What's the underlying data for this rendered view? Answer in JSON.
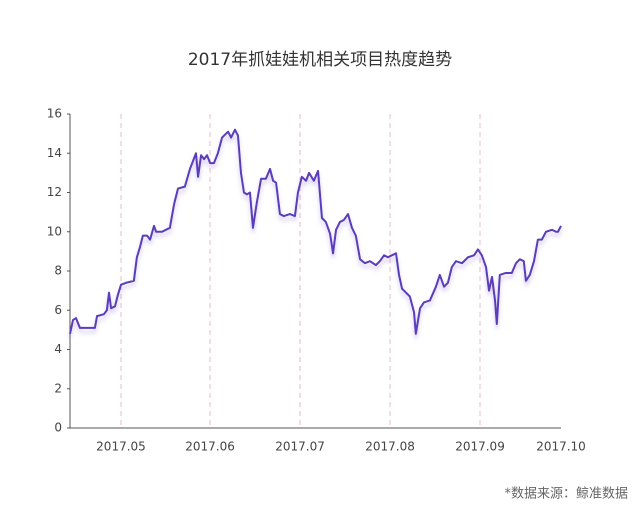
{
  "chart_data": {
    "type": "line",
    "title": "2017年抓娃娃机相关项目热度趋势",
    "source": "*数据来源：鲸准数据",
    "x": [
      0,
      1,
      2,
      3.3,
      6.7,
      8.3,
      9,
      11.3,
      12.3,
      13,
      13.7,
      15,
      16,
      17,
      18.7,
      21.3,
      22.3,
      23.3,
      24.3,
      25.7,
      26.7,
      28,
      28.7,
      30.7,
      33.3,
      34.7,
      36,
      38.3,
      40,
      42,
      42.7,
      43.7,
      44.7,
      45.7,
      46.7,
      48,
      49.3,
      50.7,
      52.7,
      53.7,
      55,
      56,
      57,
      58,
      59,
      60,
      61,
      62.3,
      63.7,
      65.3,
      66.7,
      67.7,
      68.7,
      70,
      71.3,
      73.3,
      75,
      76,
      77.3,
      78.7,
      79.7,
      81.3,
      82.7,
      84,
      85.3,
      86.7,
      87.7,
      88.7,
      90,
      91.3,
      92.7,
      94,
      95.3,
      96.7,
      98.3,
      100,
      102,
      103.3,
      104.7,
      106,
      107.3,
      108.7,
      109.7,
      110.7,
      112,
      113.3,
      114.7,
      115.3,
      116.7,
      118,
      120,
      122,
      123.3,
      124.7,
      126,
      127.3,
      128.7,
      130.7,
      132.7,
      134.7,
      136,
      137.3,
      138.7,
      139.7,
      140.7,
      141.7,
      142.3,
      143.3,
      145.3,
      147.3,
      148.7,
      150,
      151.3,
      152,
      153.3,
      154.7,
      156,
      157.3,
      158.7,
      160.7,
      162,
      162.7,
      163.7
    ],
    "series": [
      {
        "color": "#5a3db8",
        "values": [
          4.8,
          5.5,
          5.6,
          5.1,
          5.1,
          5.1,
          5.7,
          5.8,
          6.0,
          6.9,
          6.1,
          6.2,
          6.8,
          7.3,
          7.4,
          7.5,
          8.7,
          9.2,
          9.8,
          9.8,
          9.6,
          10.3,
          10.0,
          10.0,
          10.2,
          11.4,
          12.2,
          12.3,
          13.2,
          14.0,
          12.8,
          13.9,
          13.7,
          13.9,
          13.5,
          13.5,
          14.0,
          14.8,
          15.1,
          14.8,
          15.2,
          14.9,
          13.0,
          12.0,
          11.9,
          12.0,
          10.2,
          11.5,
          12.7,
          12.7,
          13.2,
          12.6,
          12.5,
          10.9,
          10.8,
          10.9,
          10.8,
          12.0,
          12.8,
          12.6,
          13.0,
          12.6,
          13.1,
          10.7,
          10.5,
          9.9,
          8.9,
          10.1,
          10.5,
          10.6,
          10.9,
          10.2,
          9.8,
          8.6,
          8.4,
          8.5,
          8.3,
          8.5,
          8.8,
          8.7,
          8.8,
          8.9,
          7.8,
          7.1,
          6.9,
          6.7,
          5.9,
          4.8,
          6.1,
          6.4,
          6.5,
          7.2,
          7.8,
          7.2,
          7.4,
          8.2,
          8.5,
          8.4,
          8.7,
          8.8,
          9.1,
          8.8,
          8.2,
          7.0,
          7.7,
          6.5,
          5.3,
          7.8,
          7.9,
          7.9,
          8.4,
          8.6,
          8.5,
          7.5,
          7.8,
          8.5,
          9.6,
          9.6,
          10.0,
          10.1,
          10.0,
          10.0,
          10.3
        ]
      }
    ],
    "xlim": [
      0,
      163.7
    ],
    "xticks": [
      {
        "value": 17,
        "label": "2017.05"
      },
      {
        "value": 46.7,
        "label": "2017.06"
      },
      {
        "value": 76.7,
        "label": "2017.07"
      },
      {
        "value": 106.7,
        "label": "2017.08"
      },
      {
        "value": 136.7,
        "label": "2017.09"
      },
      {
        "value": 163.7,
        "label": "2017.10"
      }
    ],
    "ylim": [
      0,
      16
    ],
    "yticks": [
      0,
      2,
      4,
      6,
      8,
      10,
      12,
      14,
      16
    ],
    "x_grid": true
  }
}
